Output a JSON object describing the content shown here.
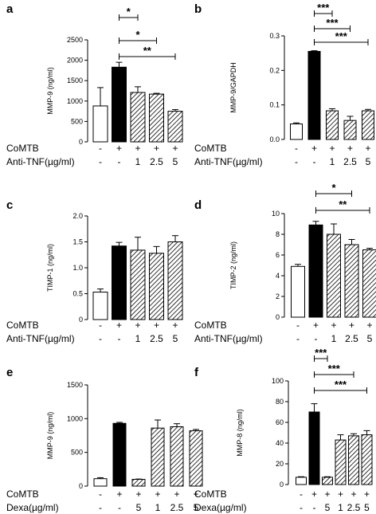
{
  "figure": {
    "bar_fill_colors": {
      "white": "#ffffff",
      "black": "#000000",
      "hatch": "#000000"
    }
  },
  "chart_data": [
    {
      "panel": "a",
      "type": "bar",
      "ylabel": "MMP-9 (ng/ml)",
      "ylim": [
        0,
        2500
      ],
      "yticks": [
        "0",
        "500",
        "1000",
        "1500",
        "2000",
        "2500"
      ],
      "ytick_values": [
        0,
        500,
        1000,
        1500,
        2000,
        2500
      ],
      "values": [
        880,
        1830,
        1210,
        1170,
        750
      ],
      "errors": [
        450,
        120,
        140,
        20,
        40
      ],
      "fills": [
        "white",
        "black",
        "hatch",
        "hatch",
        "hatch"
      ],
      "rows": [
        {
          "name": "CoMTB",
          "values": [
            "-",
            "+",
            "+",
            "+",
            "+"
          ]
        },
        {
          "name": "Anti-TNF(µg/ml)",
          "values": [
            "-",
            "-",
            "1",
            "2.5",
            "5"
          ]
        }
      ],
      "sig": [
        {
          "from": 1,
          "to": 2,
          "label": "*"
        },
        {
          "from": 1,
          "to": 3,
          "label": "*"
        },
        {
          "from": 1,
          "to": 4,
          "label": "**"
        }
      ]
    },
    {
      "panel": "b",
      "type": "bar",
      "ylabel": "MMP-9/GAPDH",
      "ylim": [
        0,
        0.3
      ],
      "yticks": [
        "0.0",
        "0.1",
        "0.2",
        "0.3"
      ],
      "ytick_values": [
        0,
        0.1,
        0.2,
        0.3
      ],
      "values": [
        0.045,
        0.255,
        0.083,
        0.055,
        0.083
      ],
      "errors": [
        0.003,
        0.002,
        0.006,
        0.012,
        0.004
      ],
      "fills": [
        "white",
        "black",
        "hatch",
        "hatch",
        "hatch"
      ],
      "rows": [
        {
          "name": "CoMTB",
          "values": [
            "-",
            "+",
            "+",
            "+",
            "+"
          ]
        },
        {
          "name": "Anti-TNF(µg/ml)",
          "values": [
            "-",
            "-",
            "1",
            "2.5",
            "5"
          ]
        }
      ],
      "sig": [
        {
          "from": 1,
          "to": 2,
          "label": "***"
        },
        {
          "from": 1,
          "to": 3,
          "label": "***"
        },
        {
          "from": 1,
          "to": 4,
          "label": "***"
        }
      ]
    },
    {
      "panel": "c",
      "type": "bar",
      "ylabel": "TIMP-1 (ng/ml)",
      "ylim": [
        0,
        2.0
      ],
      "yticks": [
        "0",
        "0.5",
        "1.0",
        "1.5",
        "2.0"
      ],
      "ytick_values": [
        0,
        0.5,
        1.0,
        1.5,
        2.0
      ],
      "values": [
        0.53,
        1.42,
        1.34,
        1.28,
        1.5
      ],
      "errors": [
        0.06,
        0.07,
        0.25,
        0.13,
        0.12
      ],
      "fills": [
        "white",
        "black",
        "hatch",
        "hatch",
        "hatch"
      ],
      "rows": [
        {
          "name": "CoMTB",
          "values": [
            "-",
            "+",
            "+",
            "+",
            "+"
          ]
        },
        {
          "name": "Anti-TNF(µg/ml)",
          "values": [
            "-",
            "-",
            "1",
            "2.5",
            "5"
          ]
        }
      ],
      "sig": []
    },
    {
      "panel": "d",
      "type": "bar",
      "ylabel": "TIMP-2 (ng/ml)",
      "ylim": [
        0,
        10
      ],
      "yticks": [
        "0",
        "2",
        "4",
        "6",
        "8",
        "10"
      ],
      "ytick_values": [
        0,
        2,
        4,
        6,
        8,
        10
      ],
      "values": [
        4.9,
        8.9,
        8.0,
        7.0,
        6.5
      ],
      "errors": [
        0.2,
        0.35,
        1.0,
        0.5,
        0.15
      ],
      "fills": [
        "white",
        "black",
        "hatch",
        "hatch",
        "hatch"
      ],
      "rows": [
        {
          "name": "CoMTB",
          "values": [
            "-",
            "+",
            "+",
            "+",
            "+"
          ]
        },
        {
          "name": "Anti-TNF(µg/ml)",
          "values": [
            "-",
            "-",
            "1",
            "2.5",
            "5"
          ]
        }
      ],
      "sig": [
        {
          "from": 1,
          "to": 3,
          "label": "*"
        },
        {
          "from": 1,
          "to": 4,
          "label": "**"
        }
      ]
    },
    {
      "panel": "e",
      "type": "bar",
      "ylabel": "MMP-9 (ng/ml)",
      "ylim": [
        0,
        1500
      ],
      "yticks": [
        "0",
        "500",
        "1000",
        "1500"
      ],
      "ytick_values": [
        0,
        500,
        1000,
        1500
      ],
      "values": [
        110,
        930,
        100,
        860,
        880,
        820
      ],
      "errors": [
        15,
        15,
        5,
        120,
        45,
        20
      ],
      "fills": [
        "white",
        "black",
        "hatch",
        "hatch",
        "hatch",
        "hatch"
      ],
      "rows": [
        {
          "name": "CoMTB",
          "values": [
            "-",
            "+",
            "+",
            "+",
            "+",
            "+"
          ]
        },
        {
          "name": "Dexa(µg/ml)",
          "values": [
            "-",
            "-",
            "5",
            "1",
            "2.5",
            "5"
          ]
        }
      ],
      "sig": []
    },
    {
      "panel": "f",
      "type": "bar",
      "ylabel": "MMP-8 (ng/ml)",
      "ylim": [
        0,
        100
      ],
      "yticks": [
        "0",
        "20",
        "40",
        "60",
        "80",
        "100"
      ],
      "ytick_values": [
        0,
        20,
        40,
        60,
        80,
        100
      ],
      "values": [
        7,
        70,
        7,
        43,
        47,
        48
      ],
      "errors": [
        0.5,
        8,
        0.5,
        5,
        2,
        4
      ],
      "fills": [
        "white",
        "black",
        "hatch",
        "hatch",
        "hatch",
        "hatch"
      ],
      "rows": [
        {
          "name": "CoMTB",
          "values": [
            "-",
            "+",
            "+",
            "+",
            "+",
            "+"
          ]
        },
        {
          "name": "Dexa(µg/ml)",
          "values": [
            "-",
            "-",
            "5",
            "1",
            "2.5",
            "5"
          ]
        }
      ],
      "sig": [
        {
          "from": 1,
          "to": 2,
          "label": "***"
        },
        {
          "from": 1,
          "to": 4,
          "label": "***"
        },
        {
          "from": 1,
          "to": 5,
          "label": "***"
        }
      ]
    }
  ]
}
